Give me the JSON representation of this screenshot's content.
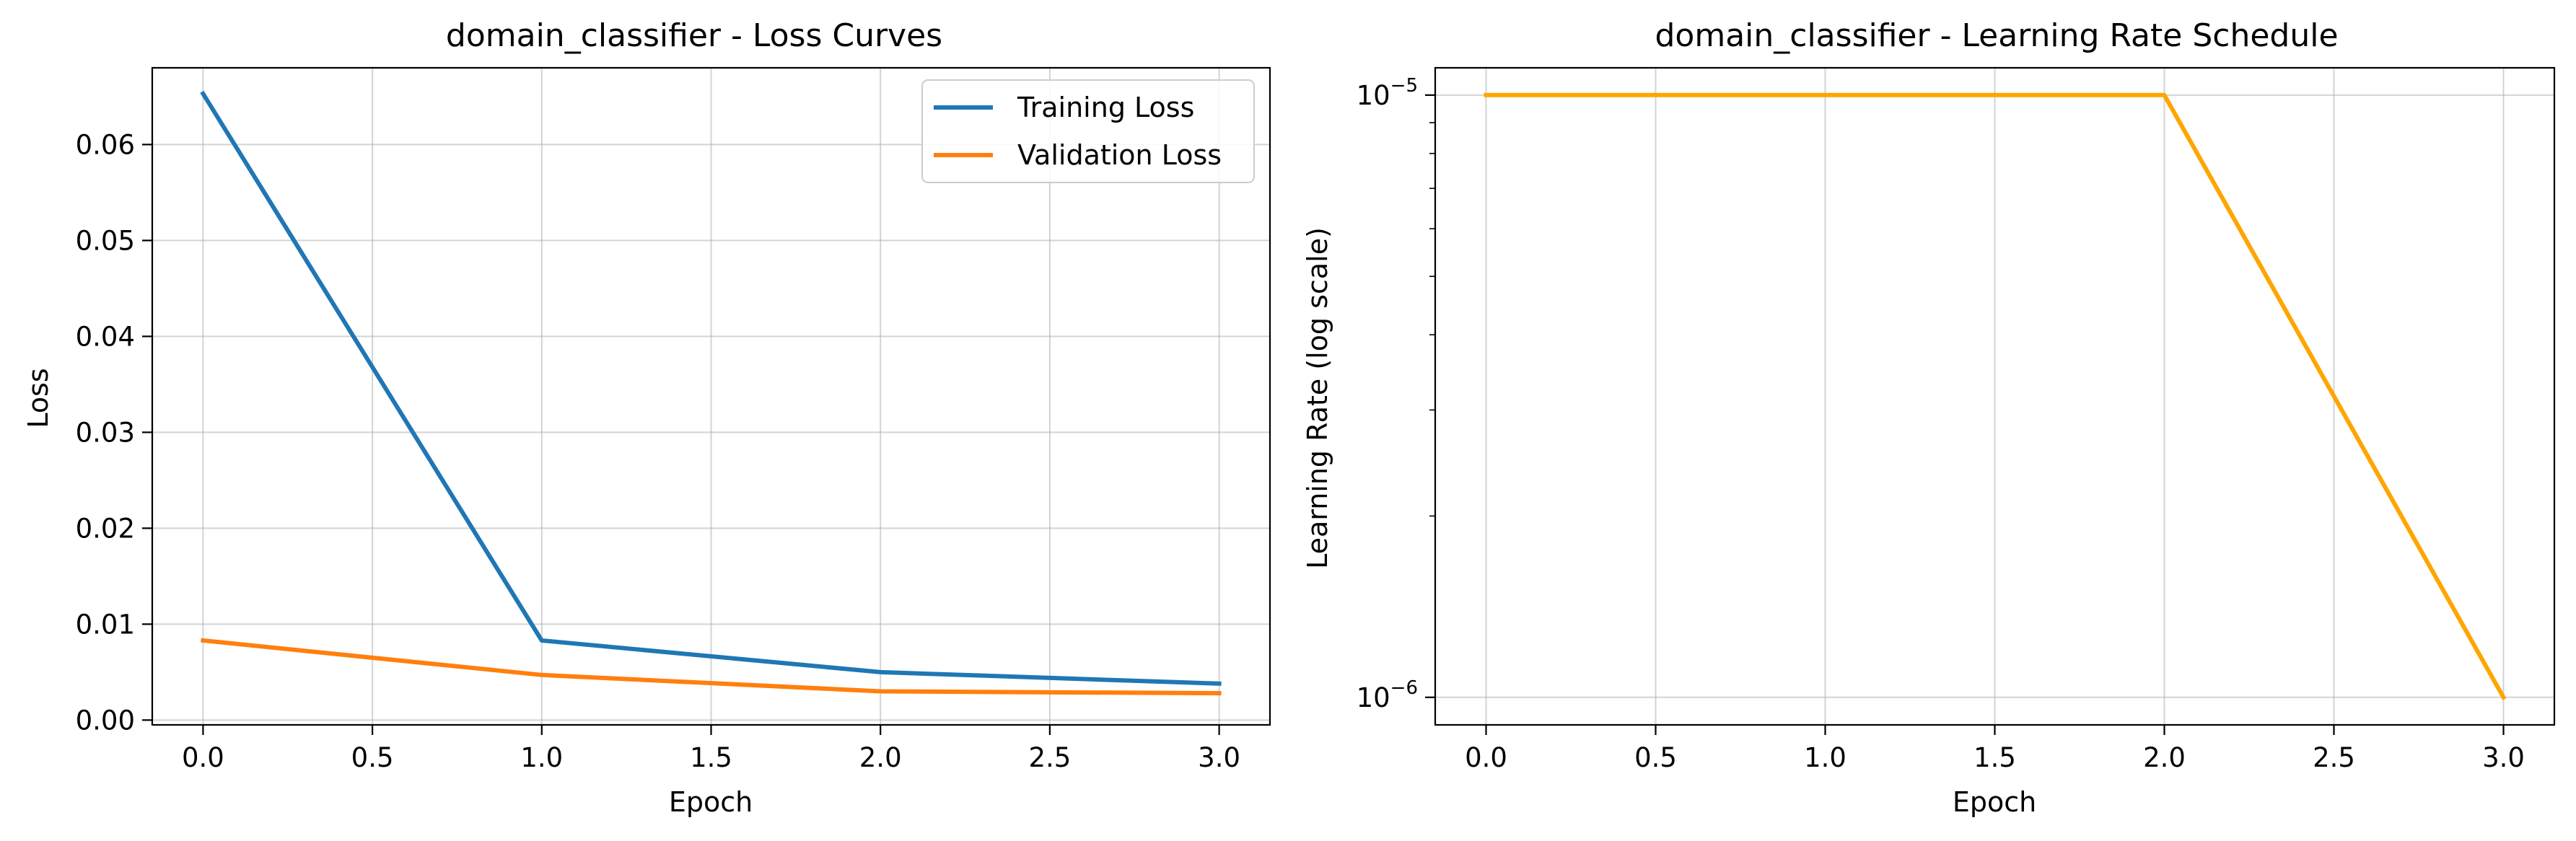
{
  "chart_data": [
    {
      "type": "line",
      "title": "domain_classifier - Loss Curves",
      "xlabel": "Epoch",
      "ylabel": "Loss",
      "xlim": [
        -0.15,
        3.15
      ],
      "ylim": [
        -0.0005,
        0.068
      ],
      "xticks": [
        0.0,
        0.5,
        1.0,
        1.5,
        2.0,
        2.5,
        3.0
      ],
      "xtick_labels": [
        "0.0",
        "0.5",
        "1.0",
        "1.5",
        "2.0",
        "2.5",
        "3.0"
      ],
      "yticks": [
        0.0,
        0.01,
        0.02,
        0.03,
        0.04,
        0.05,
        0.06
      ],
      "ytick_labels": [
        "0.00",
        "0.01",
        "0.02",
        "0.03",
        "0.04",
        "0.05",
        "0.06"
      ],
      "grid": true,
      "legend_position": "top-right",
      "x": [
        0,
        1,
        2,
        3
      ],
      "series": [
        {
          "name": "Training Loss",
          "color": "#1f77b4",
          "values": [
            0.0653,
            0.0083,
            0.005,
            0.0038
          ]
        },
        {
          "name": "Validation Loss",
          "color": "#ff7f0e",
          "values": [
            0.0083,
            0.0047,
            0.003,
            0.0028
          ]
        }
      ]
    },
    {
      "type": "line",
      "title": "domain_classifier - Learning Rate Schedule",
      "xlabel": "Epoch",
      "ylabel": "Learning Rate (log scale)",
      "y_scale": "log",
      "xlim": [
        -0.15,
        3.15
      ],
      "ylim": [
        9e-07,
        1.11e-05
      ],
      "xticks": [
        0.0,
        0.5,
        1.0,
        1.5,
        2.0,
        2.5,
        3.0
      ],
      "xtick_labels": [
        "0.0",
        "0.5",
        "1.0",
        "1.5",
        "2.0",
        "2.5",
        "3.0"
      ],
      "yticks": [
        1e-06,
        1e-05
      ],
      "ytick_labels": [
        {
          "base": "10",
          "exp": "−6"
        },
        {
          "base": "10",
          "exp": "−5"
        }
      ],
      "y_minor_ticks": [
        2e-06,
        3e-06,
        4e-06,
        5e-06,
        6e-06,
        7e-06,
        8e-06,
        9e-06
      ],
      "grid": true,
      "x": [
        0,
        1,
        2,
        3
      ],
      "series": [
        {
          "color": "#ffa500",
          "values": [
            1e-05,
            1e-05,
            1e-05,
            1e-06
          ]
        }
      ]
    }
  ]
}
